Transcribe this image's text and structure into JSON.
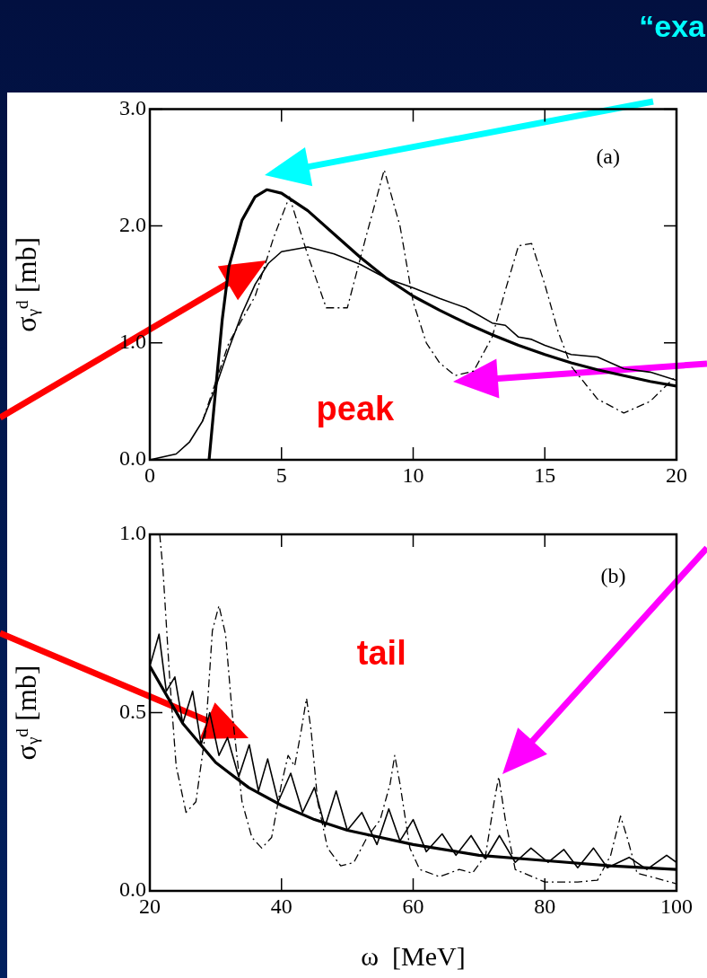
{
  "chart_data": [
    {
      "type": "line",
      "ylabel": "σᵧᵈ [mb]",
      "xlim": [
        0,
        20
      ],
      "ylim": [
        0,
        3
      ],
      "xticks": [
        0,
        5,
        10,
        15,
        20
      ],
      "yticks": [
        {
          "value": 0,
          "label": "0.0"
        },
        {
          "value": 1,
          "label": "1.0"
        },
        {
          "value": 2,
          "label": "2.0"
        },
        {
          "value": 3,
          "label": "3.0"
        }
      ],
      "marker": "none",
      "legend": false,
      "annotations": [
        "(a)",
        "peak",
        "“exa"
      ],
      "series": [
        {
          "color": "#000000",
          "line_style": "solid",
          "x": [
            2.25,
            2.5,
            2.75,
            3,
            3.5,
            4,
            4.45,
            5,
            6,
            7,
            8,
            9,
            10,
            11,
            12,
            13,
            14,
            15,
            16,
            17,
            18,
            19,
            20
          ],
          "values": [
            0,
            0.6,
            1.2,
            1.65,
            2.05,
            2.25,
            2.31,
            2.28,
            2.13,
            1.93,
            1.73,
            1.55,
            1.4,
            1.28,
            1.17,
            1.07,
            0.98,
            0.9,
            0.83,
            0.77,
            0.72,
            0.67,
            0.63
          ]
        },
        {
          "color": "#000000",
          "line_style": "solid",
          "x": [
            0,
            1,
            1.5,
            2,
            2.5,
            3,
            3.5,
            4,
            4.5,
            5,
            6,
            7,
            8,
            9,
            10,
            11,
            12,
            13,
            13.5,
            14,
            14.5,
            15,
            16,
            17,
            18,
            19,
            20
          ],
          "values": [
            0,
            0.05,
            0.15,
            0.33,
            0.62,
            0.95,
            1.25,
            1.5,
            1.68,
            1.78,
            1.82,
            1.76,
            1.67,
            1.55,
            1.47,
            1.38,
            1.3,
            1.17,
            1.15,
            1.05,
            1.03,
            0.98,
            0.9,
            0.88,
            0.78,
            0.75,
            0.68
          ]
        },
        {
          "color": "#000000",
          "line_style": "dashed",
          "x": [
            2,
            3,
            4,
            4.7,
            5.3,
            6,
            6.7,
            7.5,
            8.2,
            8.9,
            9.5,
            10,
            10.5,
            11,
            11.6,
            12.3,
            13,
            13.5,
            14,
            14.5,
            15,
            15.5,
            16,
            17,
            18,
            19,
            20
          ],
          "values": [
            0.33,
            1.0,
            1.4,
            1.9,
            2.25,
            1.75,
            1.3,
            1.3,
            1.9,
            2.48,
            2.0,
            1.35,
            1.0,
            0.83,
            0.72,
            0.76,
            1.05,
            1.45,
            1.83,
            1.85,
            1.5,
            1.1,
            0.8,
            0.52,
            0.4,
            0.5,
            0.72
          ]
        }
      ]
    },
    {
      "type": "line",
      "xlabel": "ω  [MeV]",
      "ylabel": "σᵧᵈ [mb]",
      "xlim": [
        20,
        100
      ],
      "ylim": [
        0,
        1
      ],
      "xticks": [
        20,
        40,
        60,
        80,
        100
      ],
      "yticks": [
        {
          "value": 0,
          "label": "0.0"
        },
        {
          "value": 0.5,
          "label": "0.5"
        },
        {
          "value": 1,
          "label": "1.0"
        }
      ],
      "marker": "none",
      "legend": false,
      "annotations": [
        "(b)",
        "tail"
      ],
      "series": [
        {
          "color": "#000000",
          "line_style": "solid",
          "x": [
            20,
            25,
            30,
            35,
            40,
            45,
            50,
            60,
            70,
            80,
            90,
            100
          ],
          "values": [
            0.63,
            0.47,
            0.36,
            0.29,
            0.24,
            0.2,
            0.17,
            0.13,
            0.1,
            0.085,
            0.07,
            0.06
          ]
        },
        {
          "color": "#000000",
          "line_style": "solid",
          "x": [
            20,
            21.4,
            22.5,
            23.8,
            25,
            26.5,
            27.8,
            29.1,
            30.5,
            31.8,
            33.5,
            35.1,
            36.5,
            37.9,
            39.5,
            41.4,
            43.2,
            45,
            46.6,
            48.3,
            50,
            52.2,
            54.5,
            56.3,
            58,
            60,
            62,
            64.4,
            66.5,
            68.8,
            71,
            73.1,
            75.5,
            77.9,
            80.5,
            82.9,
            85,
            87.4,
            89.5,
            92.8,
            95.5,
            98.5,
            100
          ],
          "values": [
            0.63,
            0.72,
            0.56,
            0.6,
            0.47,
            0.56,
            0.41,
            0.5,
            0.38,
            0.43,
            0.32,
            0.41,
            0.28,
            0.37,
            0.25,
            0.33,
            0.22,
            0.29,
            0.18,
            0.28,
            0.17,
            0.22,
            0.13,
            0.23,
            0.14,
            0.2,
            0.11,
            0.16,
            0.1,
            0.155,
            0.09,
            0.155,
            0.08,
            0.12,
            0.08,
            0.116,
            0.065,
            0.12,
            0.065,
            0.094,
            0.06,
            0.1,
            0.08
          ]
        },
        {
          "color": "#000000",
          "line_style": "dashed",
          "x": [
            21.5,
            22,
            23,
            24,
            25.5,
            27,
            28.5,
            29.5,
            30.5,
            31.5,
            32.5,
            34,
            35.5,
            37,
            38.5,
            40,
            41,
            42,
            43,
            43.8,
            44.5,
            45.5,
            47,
            49,
            51,
            53,
            55,
            56.5,
            57.2,
            58,
            59.5,
            61,
            64,
            67,
            69,
            71,
            72.3,
            73,
            74,
            75.5,
            80,
            85,
            88,
            90,
            91.5,
            92.5,
            94,
            100
          ],
          "values": [
            1.0,
            0.9,
            0.6,
            0.35,
            0.22,
            0.25,
            0.45,
            0.73,
            0.8,
            0.72,
            0.5,
            0.25,
            0.15,
            0.12,
            0.15,
            0.3,
            0.38,
            0.35,
            0.45,
            0.54,
            0.45,
            0.25,
            0.12,
            0.07,
            0.08,
            0.15,
            0.2,
            0.3,
            0.38,
            0.3,
            0.12,
            0.06,
            0.04,
            0.06,
            0.05,
            0.1,
            0.25,
            0.32,
            0.2,
            0.06,
            0.025,
            0.025,
            0.03,
            0.1,
            0.21,
            0.15,
            0.05,
            0.02
          ]
        }
      ]
    }
  ]
}
